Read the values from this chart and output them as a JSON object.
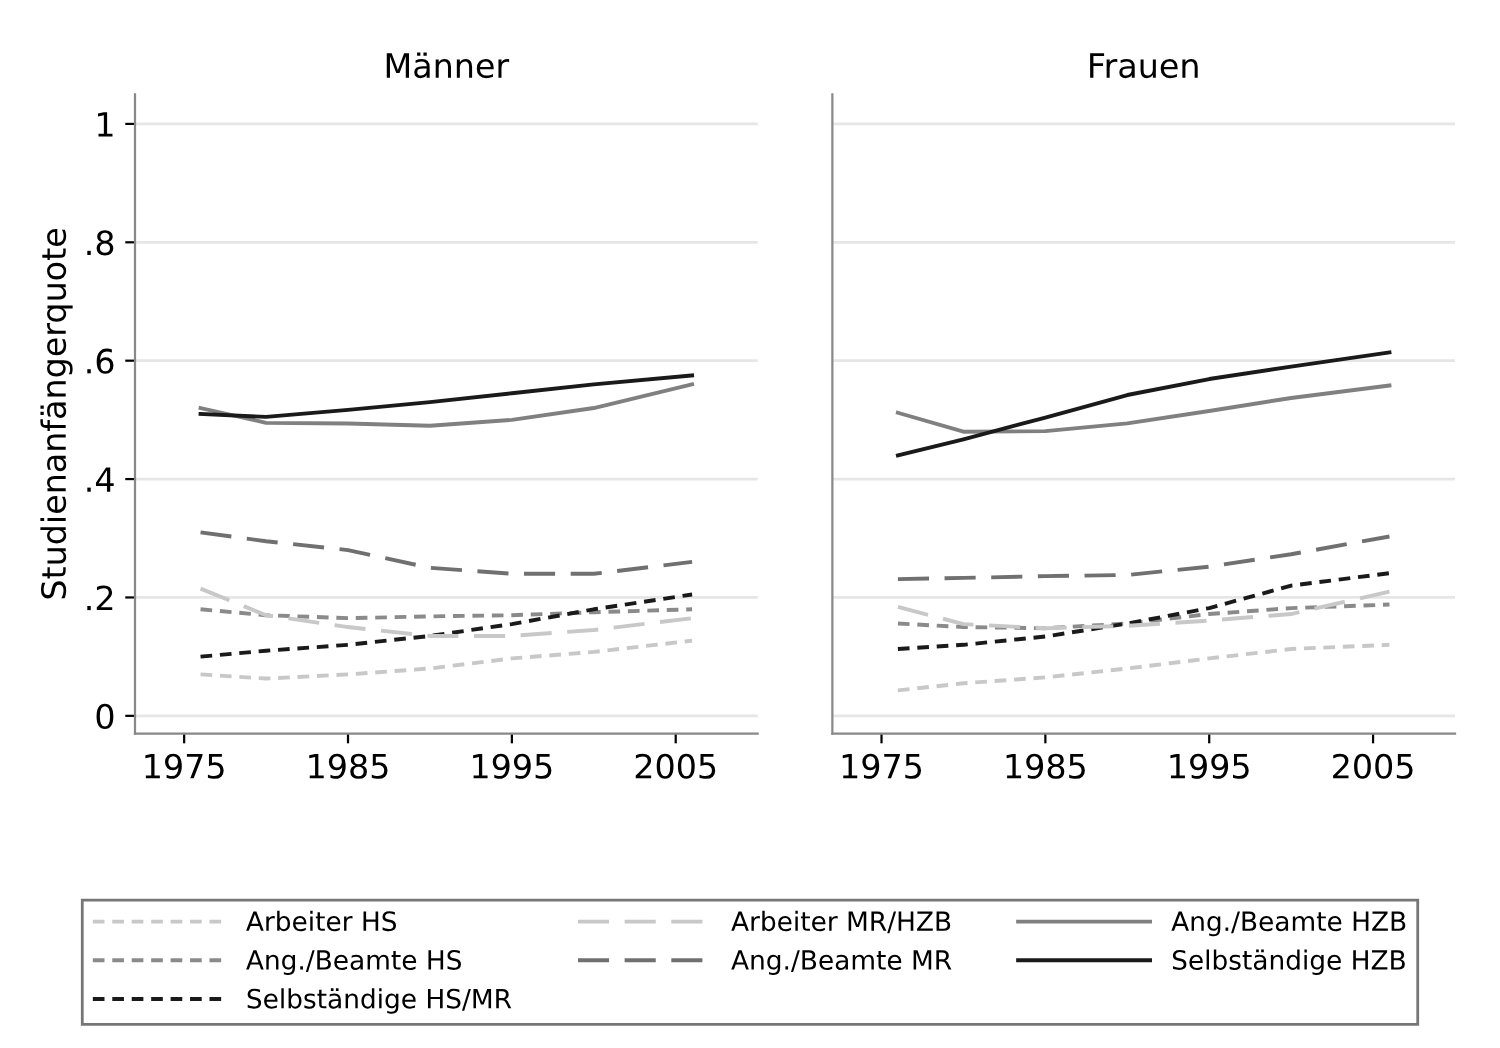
{
  "chart_data": [
    {
      "type": "line",
      "title": "Männer",
      "ylabel": "Studienanfängerquote",
      "x": [
        1976,
        1980,
        1985,
        1990,
        1995,
        2000,
        2006
      ],
      "xlim": [
        1972,
        2010
      ],
      "xticks": [
        1975,
        1985,
        1995,
        2005
      ],
      "ylim": [
        -0.03,
        1.05
      ],
      "yticks": [
        {
          "value": 0,
          "label": "0"
        },
        {
          "value": 0.2,
          "label": ".2"
        },
        {
          "value": 0.4,
          "label": ".4"
        },
        {
          "value": 0.6,
          "label": ".6"
        },
        {
          "value": 0.8,
          "label": ".8"
        },
        {
          "value": 1,
          "label": "1"
        }
      ],
      "grid": "y",
      "legend": "bottom",
      "marker": "none",
      "series": [
        {
          "name": "Arbeiter HS",
          "color": "#c8c8c8",
          "line_style": "dotted",
          "values": [
            0.07,
            0.063,
            0.07,
            0.08,
            0.097,
            0.108,
            0.127
          ]
        },
        {
          "name": "Ang./Beamte HS",
          "color": "#8a8a8a",
          "line_style": "dotted",
          "values": [
            0.18,
            0.17,
            0.165,
            0.168,
            0.17,
            0.175,
            0.18
          ]
        },
        {
          "name": "Selbständige HS/MR",
          "color": "#1a1a1a",
          "line_style": "dotted",
          "values": [
            0.1,
            0.11,
            0.12,
            0.135,
            0.155,
            0.18,
            0.205
          ]
        },
        {
          "name": "Arbeiter MR/HZB",
          "color": "#c8c8c8",
          "line_style": "dashed",
          "values": [
            0.215,
            0.17,
            0.15,
            0.135,
            0.135,
            0.145,
            0.165
          ]
        },
        {
          "name": "Ang./Beamte MR",
          "color": "#707070",
          "line_style": "dashed",
          "values": [
            0.31,
            0.295,
            0.28,
            0.25,
            0.24,
            0.24,
            0.26
          ]
        },
        {
          "name": "Ang./Beamte HZB",
          "color": "#808080",
          "line_style": "solid",
          "values": [
            0.52,
            0.495,
            0.494,
            0.49,
            0.5,
            0.52,
            0.56
          ]
        },
        {
          "name": "Selbständige HZB",
          "color": "#1a1a1a",
          "line_style": "solid",
          "values": [
            0.51,
            0.505,
            0.517,
            0.53,
            0.545,
            0.56,
            0.575
          ]
        }
      ]
    },
    {
      "type": "line",
      "title": "Frauen",
      "x": [
        1976,
        1980,
        1985,
        1990,
        1995,
        2000,
        2006
      ],
      "xlim": [
        1972,
        2010
      ],
      "xticks": [
        1975,
        1985,
        1995,
        2005
      ],
      "ylim": [
        -0.03,
        1.05
      ],
      "yticks": [
        {
          "value": 0,
          "label": null
        },
        {
          "value": 0.2,
          "label": null
        },
        {
          "value": 0.4,
          "label": null
        },
        {
          "value": 0.6,
          "label": null
        },
        {
          "value": 0.8,
          "label": null
        },
        {
          "value": 1,
          "label": null
        }
      ],
      "grid": "y",
      "tick_labels": "x",
      "marker": "none",
      "series": [
        {
          "color": "#c8c8c8",
          "line_style": "dotted",
          "values": [
            0.043,
            0.055,
            0.065,
            0.08,
            0.097,
            0.113,
            0.12
          ]
        },
        {
          "color": "#8a8a8a",
          "line_style": "dotted",
          "values": [
            0.156,
            0.15,
            0.148,
            0.156,
            0.172,
            0.182,
            0.188
          ]
        },
        {
          "color": "#1a1a1a",
          "line_style": "dotted",
          "values": [
            0.113,
            0.12,
            0.134,
            0.156,
            0.182,
            0.22,
            0.241
          ]
        },
        {
          "color": "#c8c8c8",
          "line_style": "dashed",
          "values": [
            0.184,
            0.155,
            0.148,
            0.152,
            0.161,
            0.172,
            0.21
          ]
        },
        {
          "color": "#707070",
          "line_style": "dashed",
          "values": [
            0.231,
            0.233,
            0.236,
            0.238,
            0.252,
            0.273,
            0.303
          ]
        },
        {
          "color": "#808080",
          "line_style": "solid",
          "values": [
            0.512,
            0.48,
            0.481,
            0.494,
            0.515,
            0.537,
            0.558
          ]
        },
        {
          "color": "#1a1a1a",
          "line_style": "solid",
          "values": [
            0.44,
            0.467,
            0.504,
            0.542,
            0.569,
            0.59,
            0.614
          ]
        }
      ]
    }
  ]
}
